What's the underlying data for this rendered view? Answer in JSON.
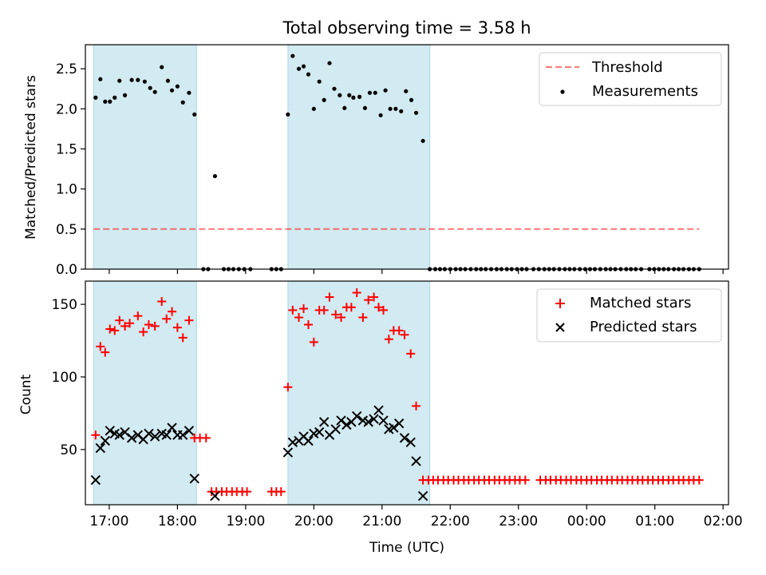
{
  "figure": {
    "title": "Total observing time = 3.58 h",
    "xlabel": "Time (UTC)",
    "xticks": [
      "17:00",
      "18:00",
      "19:00",
      "20:00",
      "21:00",
      "22:00",
      "23:00",
      "00:00",
      "01:00",
      "02:00"
    ],
    "xlim": [
      16.65,
      26.08
    ],
    "observing_intervals": [
      [
        16.77,
        18.28
      ],
      [
        19.62,
        21.7
      ]
    ],
    "shade_color": "#add8e6"
  },
  "chart_data": [
    {
      "type": "scatter",
      "panel": "top",
      "ylabel": "Matched/Predicted stars",
      "ylim": [
        0,
        2.8
      ],
      "yticks": [
        "0.0",
        "0.5",
        "1.0",
        "1.5",
        "2.0",
        "2.5"
      ],
      "legend_position": "top-right",
      "threshold": {
        "name": "Threshold",
        "value": 0.5,
        "x_range": [
          16.77,
          25.65
        ],
        "color": "#ff0000",
        "style": "dashed",
        "alpha": 0.5
      },
      "series": [
        {
          "name": "Measurements",
          "color": "#000000",
          "points": [
            [
              16.8,
              2.14
            ],
            [
              16.87,
              2.37
            ],
            [
              16.94,
              2.09
            ],
            [
              17.01,
              2.09
            ],
            [
              17.08,
              2.14
            ],
            [
              17.15,
              2.35
            ],
            [
              17.23,
              2.17
            ],
            [
              17.33,
              2.36
            ],
            [
              17.42,
              2.36
            ],
            [
              17.52,
              2.34
            ],
            [
              17.6,
              2.26
            ],
            [
              17.67,
              2.21
            ],
            [
              17.77,
              2.52
            ],
            [
              17.86,
              2.35
            ],
            [
              17.92,
              2.23
            ],
            [
              18.0,
              2.28
            ],
            [
              18.08,
              2.08
            ],
            [
              18.17,
              2.2
            ],
            [
              18.25,
              1.93
            ],
            [
              18.38,
              0
            ],
            [
              18.45,
              0
            ],
            [
              18.55,
              1.16
            ],
            [
              18.68,
              0
            ],
            [
              18.75,
              0
            ],
            [
              18.82,
              0
            ],
            [
              18.9,
              0
            ],
            [
              18.98,
              0
            ],
            [
              19.07,
              0
            ],
            [
              19.38,
              0
            ],
            [
              19.45,
              0
            ],
            [
              19.52,
              0
            ],
            [
              19.62,
              1.93
            ],
            [
              19.69,
              2.66
            ],
            [
              19.78,
              2.5
            ],
            [
              19.85,
              2.53
            ],
            [
              19.92,
              2.43
            ],
            [
              20.0,
              2.0
            ],
            [
              20.08,
              2.34
            ],
            [
              20.15,
              2.11
            ],
            [
              20.23,
              2.57
            ],
            [
              20.3,
              2.25
            ],
            [
              20.38,
              2.17
            ],
            [
              20.45,
              2.01
            ],
            [
              20.52,
              2.17
            ],
            [
              20.58,
              2.14
            ],
            [
              20.67,
              2.15
            ],
            [
              20.75,
              2.01
            ],
            [
              20.82,
              2.2
            ],
            [
              20.9,
              2.2
            ],
            [
              20.98,
              1.92
            ],
            [
              21.05,
              2.23
            ],
            [
              21.12,
              2.0
            ],
            [
              21.2,
              2.0
            ],
            [
              21.28,
              1.97
            ],
            [
              21.35,
              2.22
            ],
            [
              21.43,
              2.11
            ],
            [
              21.5,
              1.95
            ],
            [
              21.6,
              1.6
            ],
            [
              21.7,
              0
            ],
            [
              21.78,
              0
            ],
            [
              21.85,
              0
            ],
            [
              21.92,
              0
            ],
            [
              22.0,
              0
            ],
            [
              22.08,
              0
            ],
            [
              22.15,
              0
            ],
            [
              22.22,
              0
            ],
            [
              22.3,
              0
            ],
            [
              22.38,
              0
            ],
            [
              22.45,
              0
            ],
            [
              22.52,
              0
            ],
            [
              22.6,
              0
            ],
            [
              22.68,
              0
            ],
            [
              22.75,
              0
            ],
            [
              22.83,
              0
            ],
            [
              22.9,
              0
            ],
            [
              22.98,
              0
            ],
            [
              23.05,
              0
            ],
            [
              23.12,
              0
            ],
            [
              23.22,
              0
            ],
            [
              23.3,
              0
            ],
            [
              23.38,
              0
            ],
            [
              23.45,
              0
            ],
            [
              23.52,
              0
            ],
            [
              23.6,
              0
            ],
            [
              23.68,
              0
            ],
            [
              23.75,
              0
            ],
            [
              23.82,
              0
            ],
            [
              23.9,
              0
            ],
            [
              23.98,
              0
            ],
            [
              24.05,
              0
            ],
            [
              24.12,
              0
            ],
            [
              24.2,
              0
            ],
            [
              24.28,
              0
            ],
            [
              24.35,
              0
            ],
            [
              24.42,
              0
            ],
            [
              24.5,
              0
            ],
            [
              24.58,
              0
            ],
            [
              24.65,
              0
            ],
            [
              24.72,
              0
            ],
            [
              24.8,
              0
            ],
            [
              24.92,
              0
            ],
            [
              24.99,
              0
            ],
            [
              25.06,
              0
            ],
            [
              25.13,
              0
            ],
            [
              25.2,
              0
            ],
            [
              25.28,
              0
            ],
            [
              25.35,
              0
            ],
            [
              25.42,
              0
            ],
            [
              25.5,
              0
            ],
            [
              25.57,
              0
            ],
            [
              25.65,
              0
            ]
          ]
        }
      ]
    },
    {
      "type": "scatter",
      "panel": "bottom",
      "ylabel": "Count",
      "ylim": [
        12,
        166
      ],
      "yticks": [
        "50",
        "100",
        "150"
      ],
      "legend_position": "top-right",
      "series": [
        {
          "name": "Matched stars",
          "color": "#ff0000",
          "marker": "plus",
          "points": [
            [
              16.8,
              60
            ],
            [
              16.87,
              121
            ],
            [
              16.94,
              117
            ],
            [
              17.01,
              133
            ],
            [
              17.08,
              132
            ],
            [
              17.15,
              139
            ],
            [
              17.23,
              135
            ],
            [
              17.3,
              137
            ],
            [
              17.42,
              142
            ],
            [
              17.5,
              131
            ],
            [
              17.58,
              136
            ],
            [
              17.67,
              135
            ],
            [
              17.77,
              152
            ],
            [
              17.84,
              140
            ],
            [
              17.92,
              145
            ],
            [
              18.0,
              134
            ],
            [
              18.08,
              127
            ],
            [
              18.17,
              139
            ],
            [
              18.25,
              58
            ],
            [
              18.33,
              58
            ],
            [
              18.42,
              58
            ],
            [
              18.5,
              21
            ],
            [
              18.57,
              21
            ],
            [
              18.65,
              21
            ],
            [
              18.72,
              21
            ],
            [
              18.8,
              21
            ],
            [
              18.87,
              21
            ],
            [
              18.95,
              21
            ],
            [
              19.02,
              21
            ],
            [
              19.38,
              21
            ],
            [
              19.45,
              21
            ],
            [
              19.52,
              21
            ],
            [
              19.62,
              93
            ],
            [
              19.69,
              146
            ],
            [
              19.78,
              141
            ],
            [
              19.85,
              147
            ],
            [
              19.92,
              136
            ],
            [
              20.0,
              124
            ],
            [
              20.08,
              146
            ],
            [
              20.15,
              146
            ],
            [
              20.23,
              155
            ],
            [
              20.32,
              143
            ],
            [
              20.4,
              141
            ],
            [
              20.48,
              148
            ],
            [
              20.55,
              148
            ],
            [
              20.63,
              158
            ],
            [
              20.72,
              141
            ],
            [
              20.8,
              153
            ],
            [
              20.88,
              155
            ],
            [
              20.95,
              148
            ],
            [
              21.02,
              146
            ],
            [
              21.1,
              126
            ],
            [
              21.17,
              132
            ],
            [
              21.25,
              132
            ],
            [
              21.33,
              129
            ],
            [
              21.42,
              116
            ],
            [
              21.5,
              80
            ],
            [
              21.6,
              29
            ],
            [
              21.68,
              29
            ],
            [
              21.75,
              29
            ],
            [
              21.82,
              29
            ],
            [
              21.9,
              29
            ],
            [
              21.97,
              29
            ],
            [
              22.05,
              29
            ],
            [
              22.12,
              29
            ],
            [
              22.2,
              29
            ],
            [
              22.27,
              29
            ],
            [
              22.35,
              29
            ],
            [
              22.42,
              29
            ],
            [
              22.5,
              29
            ],
            [
              22.57,
              29
            ],
            [
              22.65,
              29
            ],
            [
              22.72,
              29
            ],
            [
              22.8,
              29
            ],
            [
              22.87,
              29
            ],
            [
              22.95,
              29
            ],
            [
              23.02,
              29
            ],
            [
              23.1,
              29
            ],
            [
              23.32,
              29
            ],
            [
              23.4,
              29
            ],
            [
              23.47,
              29
            ],
            [
              23.55,
              29
            ],
            [
              23.62,
              29
            ],
            [
              23.7,
              29
            ],
            [
              23.77,
              29
            ],
            [
              23.85,
              29
            ],
            [
              23.92,
              29
            ],
            [
              24.0,
              29
            ],
            [
              24.07,
              29
            ],
            [
              24.15,
              29
            ],
            [
              24.22,
              29
            ],
            [
              24.3,
              29
            ],
            [
              24.37,
              29
            ],
            [
              24.45,
              29
            ],
            [
              24.52,
              29
            ],
            [
              24.6,
              29
            ],
            [
              24.67,
              29
            ],
            [
              24.75,
              29
            ],
            [
              24.82,
              29
            ],
            [
              24.9,
              29
            ],
            [
              24.97,
              29
            ],
            [
              25.05,
              29
            ],
            [
              25.12,
              29
            ],
            [
              25.2,
              29
            ],
            [
              25.27,
              29
            ],
            [
              25.35,
              29
            ],
            [
              25.42,
              29
            ],
            [
              25.5,
              29
            ],
            [
              25.57,
              29
            ],
            [
              25.65,
              29
            ]
          ]
        },
        {
          "name": "Predicted stars",
          "color": "#000000",
          "marker": "x",
          "points": [
            [
              16.8,
              29
            ],
            [
              16.87,
              51
            ],
            [
              16.94,
              56
            ],
            [
              17.01,
              63
            ],
            [
              17.08,
              61
            ],
            [
              17.15,
              60
            ],
            [
              17.23,
              62
            ],
            [
              17.33,
              58
            ],
            [
              17.42,
              60
            ],
            [
              17.5,
              57
            ],
            [
              17.58,
              61
            ],
            [
              17.67,
              59
            ],
            [
              17.77,
              61
            ],
            [
              17.84,
              60
            ],
            [
              17.92,
              65
            ],
            [
              18.0,
              60
            ],
            [
              18.08,
              60
            ],
            [
              18.17,
              63
            ],
            [
              18.25,
              30
            ],
            [
              18.55,
              18
            ],
            [
              19.62,
              48
            ],
            [
              19.69,
              55
            ],
            [
              19.78,
              56
            ],
            [
              19.85,
              59
            ],
            [
              19.92,
              56
            ],
            [
              20.0,
              61
            ],
            [
              20.08,
              62
            ],
            [
              20.15,
              69
            ],
            [
              20.23,
              60
            ],
            [
              20.32,
              64
            ],
            [
              20.4,
              70
            ],
            [
              20.48,
              67
            ],
            [
              20.55,
              69
            ],
            [
              20.63,
              73
            ],
            [
              20.72,
              70
            ],
            [
              20.8,
              69
            ],
            [
              20.88,
              71
            ],
            [
              20.95,
              77
            ],
            [
              21.02,
              70
            ],
            [
              21.1,
              64
            ],
            [
              21.17,
              65
            ],
            [
              21.25,
              68
            ],
            [
              21.33,
              58
            ],
            [
              21.42,
              55
            ],
            [
              21.5,
              42
            ],
            [
              21.6,
              18
            ]
          ]
        }
      ]
    }
  ]
}
